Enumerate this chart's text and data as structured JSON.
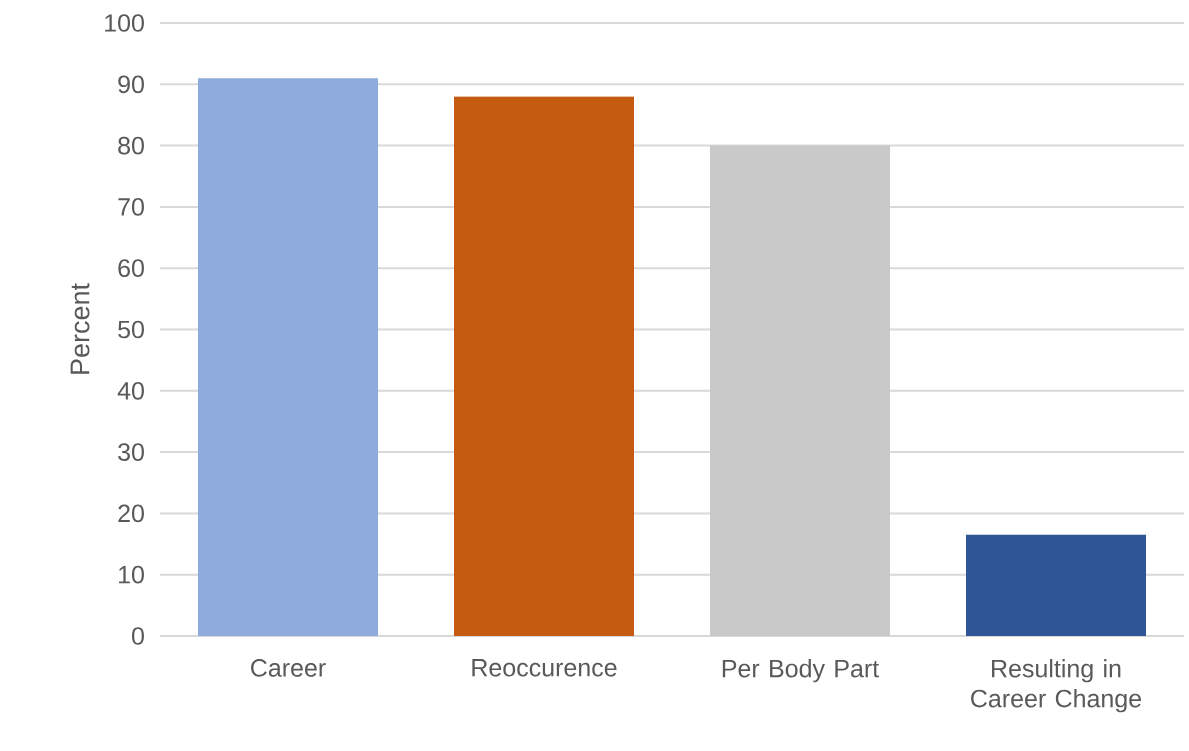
{
  "chart_data": {
    "type": "bar",
    "ylabel": "Percent",
    "categories": [
      "Career",
      "Reoccurence",
      "Per Body Part",
      "Resulting in Career Change"
    ],
    "values": [
      91,
      88,
      80,
      16.5
    ],
    "colors": [
      "#8faadc",
      "#c55a11",
      "#c9c9c9",
      "#2f5597"
    ],
    "ylim": [
      0,
      100
    ],
    "yticks": [
      0,
      10,
      20,
      30,
      40,
      50,
      60,
      70,
      80,
      90,
      100
    ],
    "grid": "y"
  }
}
